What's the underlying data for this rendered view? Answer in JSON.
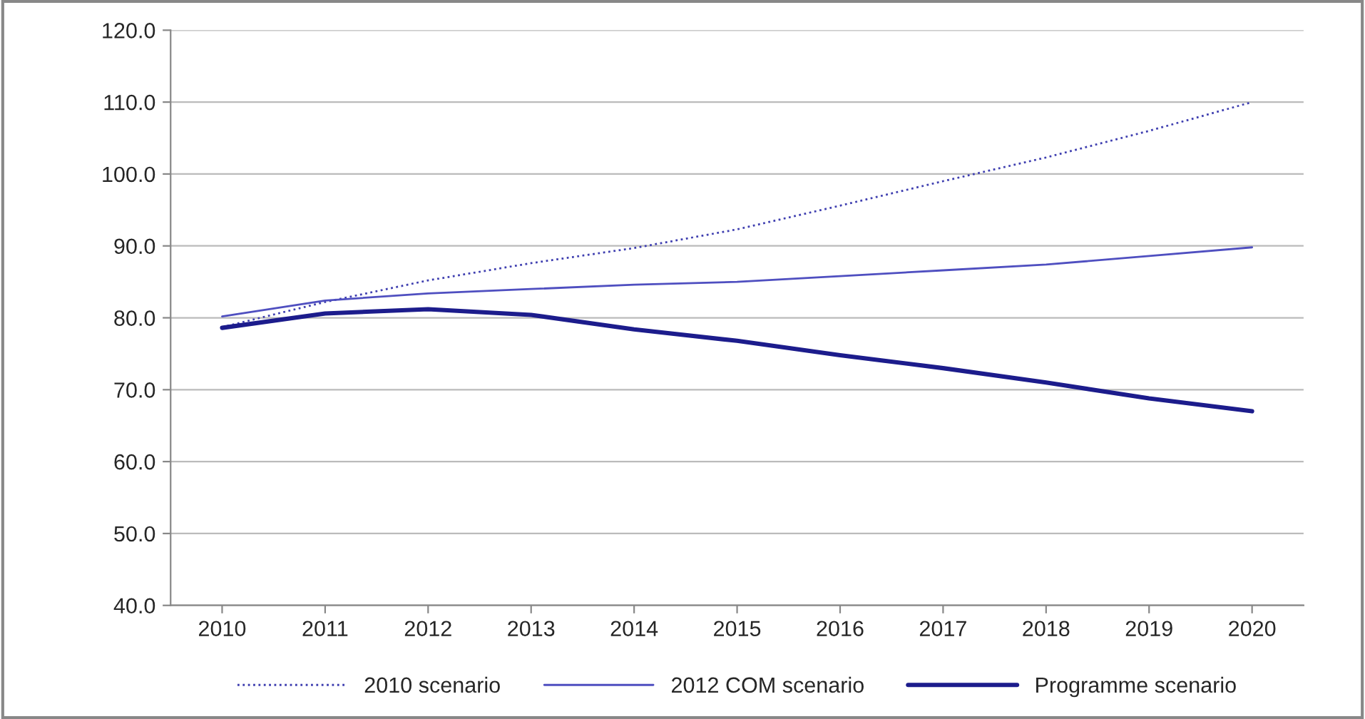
{
  "chart_data": {
    "type": "line",
    "categories": [
      "2010",
      "2011",
      "2012",
      "2013",
      "2014",
      "2015",
      "2016",
      "2017",
      "2018",
      "2019",
      "2020"
    ],
    "series": [
      {
        "name": "2010 scenario",
        "color": "#3f3fb0",
        "line_style": "dotted",
        "values": [
          78.7,
          82.2,
          85.2,
          87.6,
          89.7,
          92.3,
          95.6,
          99.0,
          102.3,
          106.0,
          110.0
        ]
      },
      {
        "name": "2012 COM scenario",
        "color": "#4f4fc0",
        "line_style": "solid",
        "values": [
          80.2,
          82.4,
          83.4,
          84.0,
          84.6,
          85.0,
          85.8,
          86.6,
          87.4,
          88.6,
          89.8
        ]
      },
      {
        "name": "Programme scenario",
        "color": "#1c1c8c",
        "line_style": "solid",
        "values": [
          78.6,
          80.6,
          81.2,
          80.4,
          78.4,
          76.8,
          74.8,
          73.0,
          71.0,
          68.8,
          67.0
        ]
      }
    ],
    "ylim": [
      40,
      120
    ],
    "yticks": [
      {
        "value": 40,
        "label": "40.0"
      },
      {
        "value": 50,
        "label": "50.0"
      },
      {
        "value": 60,
        "label": "60.0"
      },
      {
        "value": 70,
        "label": "70.0"
      },
      {
        "value": 80,
        "label": "80.0"
      },
      {
        "value": 90,
        "label": "90.0"
      },
      {
        "value": 100,
        "label": "100.0"
      },
      {
        "value": 110,
        "label": "110.0"
      },
      {
        "value": 120,
        "label": "120.0"
      }
    ],
    "grid": "y",
    "legend": "bottom",
    "marker": "none"
  }
}
